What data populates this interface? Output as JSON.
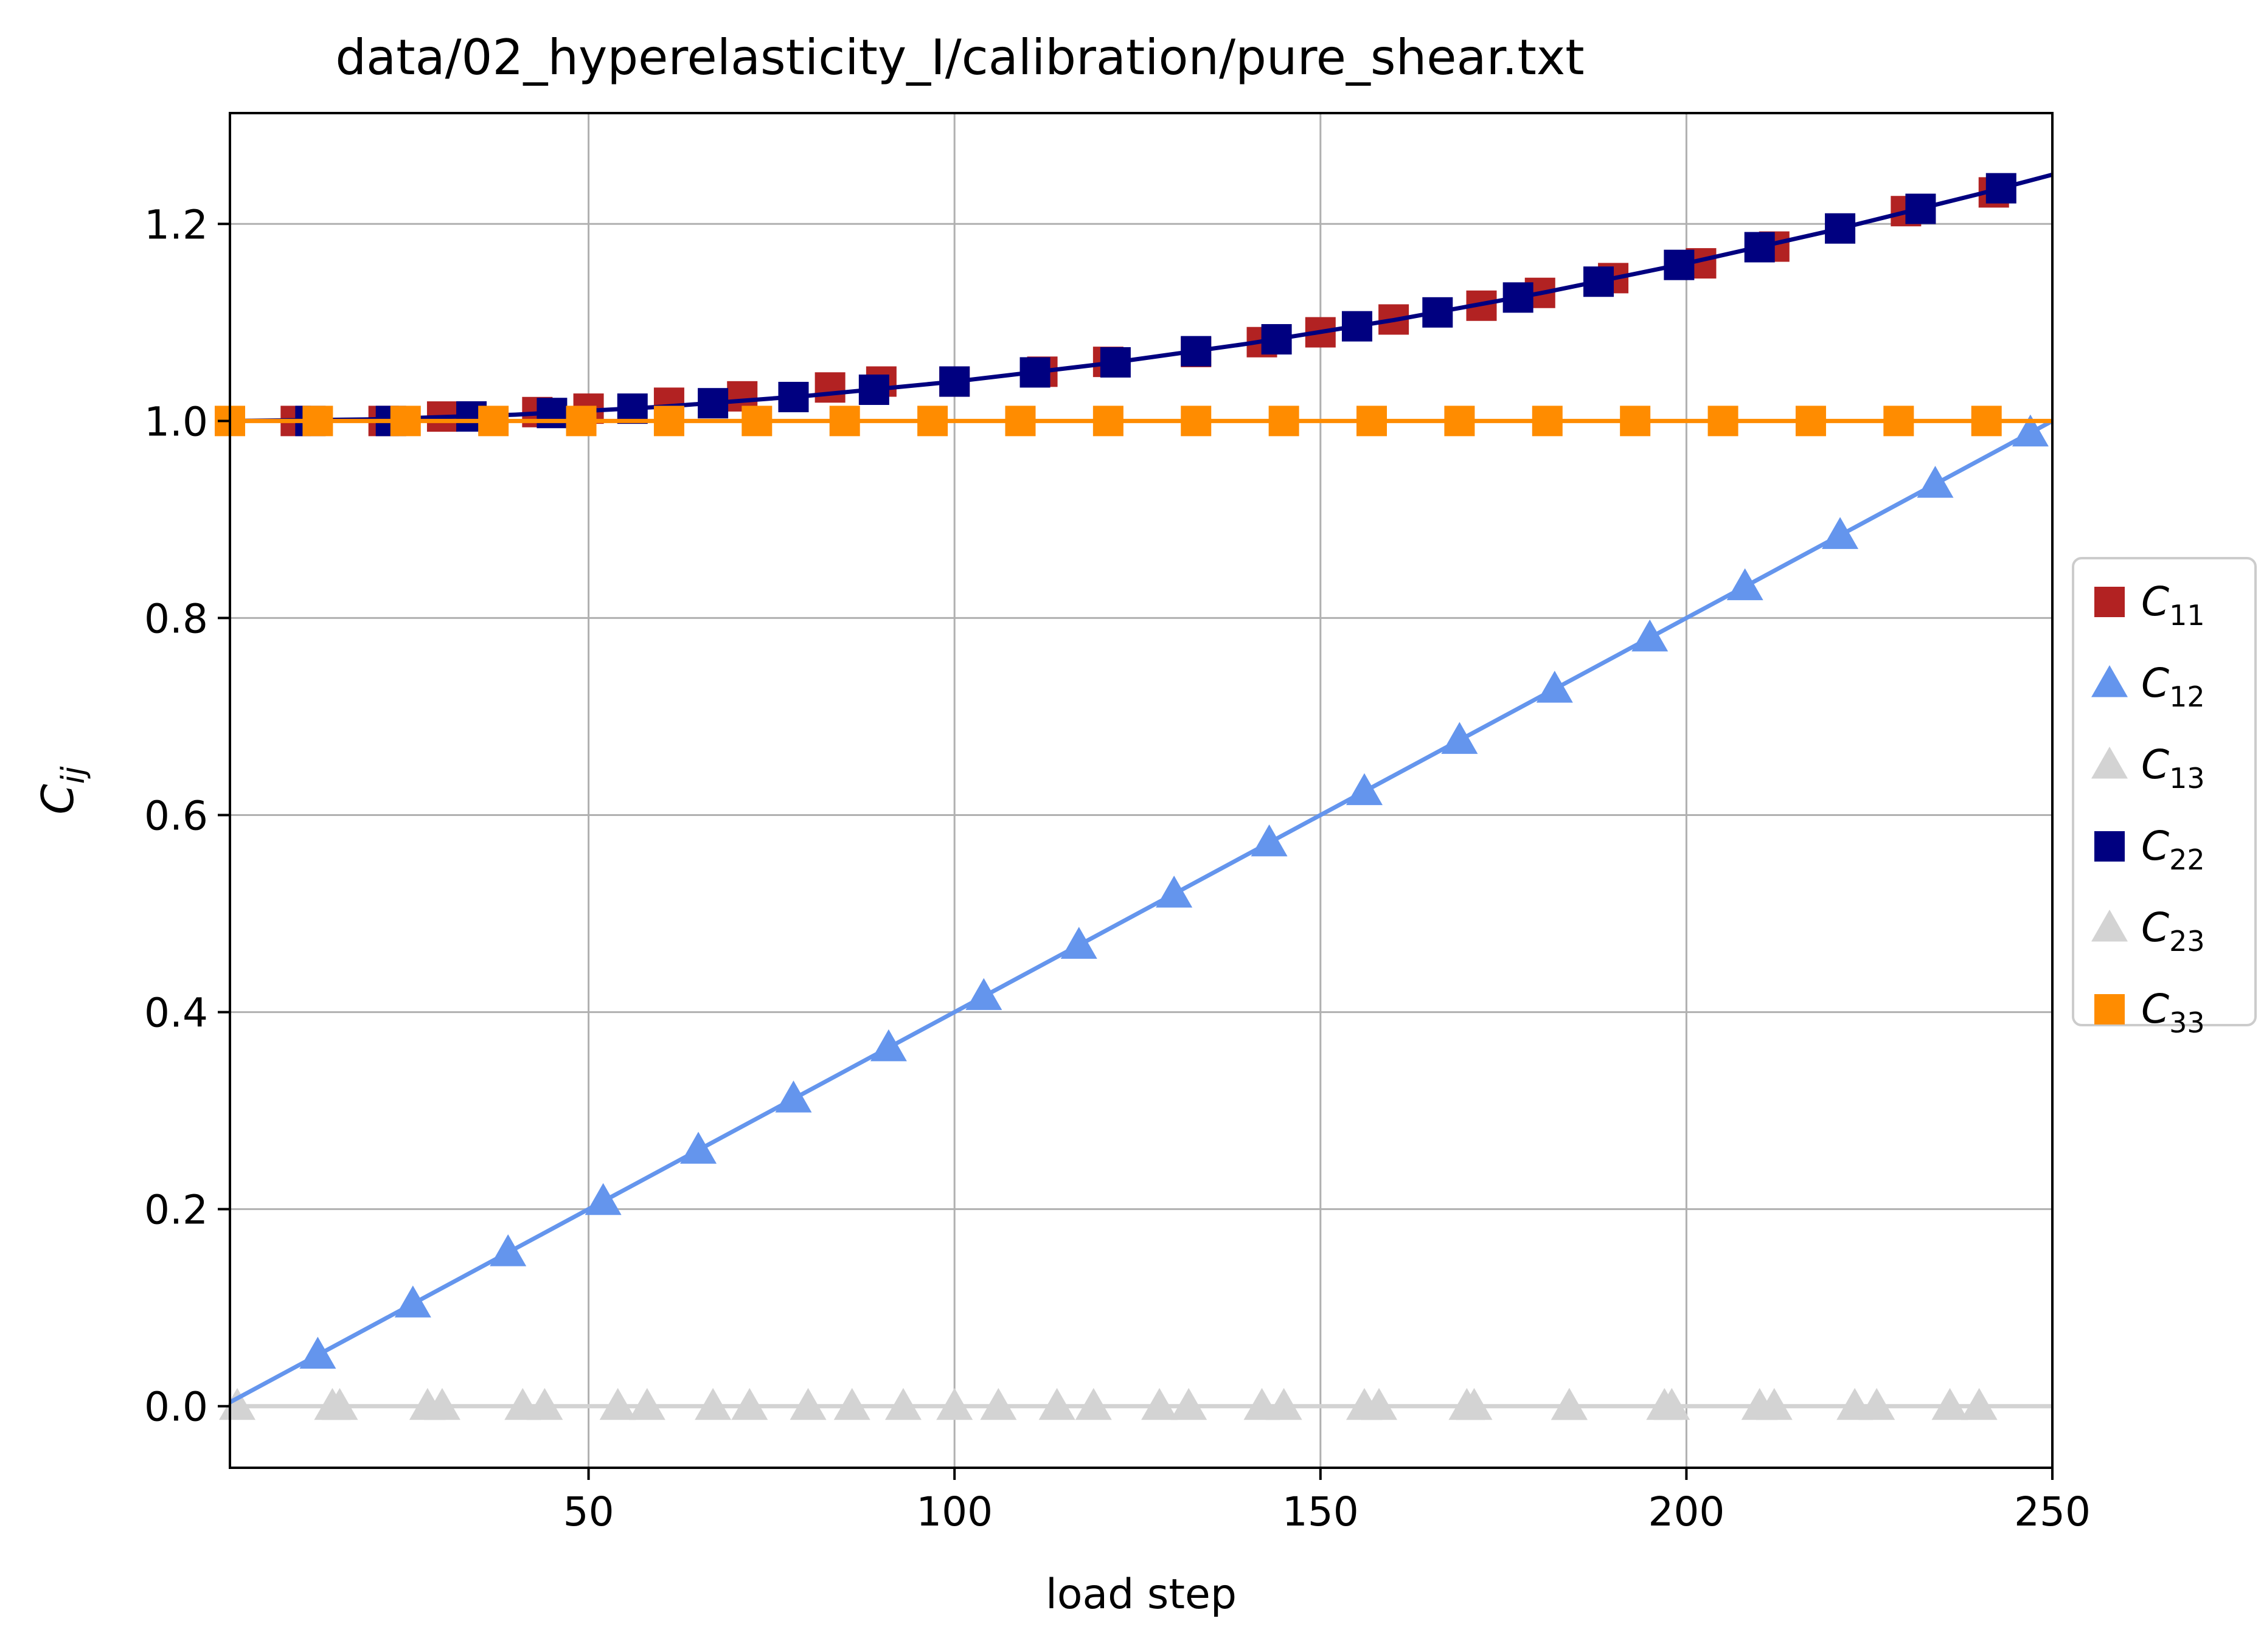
{
  "chart_data": {
    "type": "line",
    "title": "data/02_hyperelasticity_I/calibration/pure_shear.txt",
    "xlabel": "load step",
    "ylabel": {
      "base": "C",
      "sub": "ij"
    },
    "xlim": [
      1,
      250
    ],
    "ylim": [
      -0.0625,
      1.3125
    ],
    "xticks": [
      50,
      100,
      150,
      200,
      250
    ],
    "xtick_labels": [
      "50",
      "100",
      "150",
      "200",
      "250"
    ],
    "yticks": [
      0.0,
      0.2,
      0.4,
      0.6,
      0.8,
      1.0,
      1.2
    ],
    "ytick_labels": [
      "0.0",
      "0.2",
      "0.4",
      "0.6",
      "0.8",
      "1.0",
      "1.2"
    ],
    "grid": true,
    "legend_placement": "outside right, center",
    "series": [
      {
        "name": "C11",
        "label_base": "C",
        "label_sub": "11",
        "color": "#b22222",
        "marker": "square",
        "marker_only": true,
        "x": [
          10,
          22,
          30,
          43,
          50,
          61,
          71,
          83,
          90,
          100,
          112,
          121,
          133,
          142,
          150,
          160,
          172,
          180,
          190,
          202,
          212,
          230,
          242
        ],
        "y": [
          1.0,
          1.0,
          1.0045,
          1.009,
          1.0125,
          1.0185,
          1.025,
          1.034,
          1.04,
          1.04,
          1.05,
          1.06,
          1.07,
          1.08,
          1.09,
          1.103,
          1.117,
          1.13,
          1.145,
          1.16,
          1.177,
          1.213,
          1.232
        ]
      },
      {
        "name": "C12",
        "label_base": "C",
        "label_sub": "12",
        "color": "#6495ed",
        "marker": "triangle",
        "x": [
          1,
          250
        ],
        "y": [
          0.004,
          1.0
        ],
        "marker_x": [
          13,
          26,
          39,
          52,
          65,
          78,
          91,
          104,
          117,
          130,
          143,
          156,
          169,
          182,
          195,
          208,
          221,
          234,
          247
        ],
        "marker_y": [
          0.052,
          0.104,
          0.156,
          0.208,
          0.26,
          0.312,
          0.364,
          0.416,
          0.468,
          0.52,
          0.572,
          0.624,
          0.676,
          0.728,
          0.78,
          0.832,
          0.884,
          0.936,
          0.988
        ]
      },
      {
        "name": "C13",
        "label_base": "C",
        "label_sub": "13",
        "color": "#d3d3d3",
        "marker": "triangle",
        "x": [
          1,
          250
        ],
        "y": [
          0.0,
          0.0
        ],
        "marker_x": [
          2,
          15,
          28,
          41,
          54,
          67,
          80,
          93,
          106,
          119,
          132,
          145,
          158,
          171,
          184,
          197,
          210,
          223,
          236
        ],
        "marker_y": [
          0,
          0,
          0,
          0,
          0,
          0,
          0,
          0,
          0,
          0,
          0,
          0,
          0,
          0,
          0,
          0,
          0,
          0,
          0
        ]
      },
      {
        "name": "C22",
        "label_base": "C",
        "label_sub": "22",
        "color": "#000080",
        "marker": "square",
        "x": [
          1,
          20,
          40,
          60,
          80,
          100,
          120,
          140,
          160,
          180,
          200,
          220,
          240,
          250
        ],
        "y": [
          1.0,
          1.0016,
          1.0064,
          1.0144,
          1.0256,
          1.04,
          1.0576,
          1.0784,
          1.1024,
          1.1296,
          1.16,
          1.1936,
          1.2304,
          1.25
        ],
        "marker_x": [
          12,
          23,
          34,
          45,
          56,
          67,
          78,
          89,
          100,
          111,
          122,
          133,
          144,
          155,
          166,
          177,
          188,
          199,
          210,
          221,
          232,
          243
        ],
        "marker_y": [
          1.0,
          1.0,
          1.0046,
          1.0081,
          1.0125,
          1.018,
          1.0243,
          1.0317,
          1.04,
          1.0493,
          1.0595,
          1.0708,
          1.0829,
          1.0961,
          1.1102,
          1.1253,
          1.1414,
          1.1584,
          1.1764,
          1.1954,
          1.2153,
          1.2362
        ]
      },
      {
        "name": "C23",
        "label_base": "C",
        "label_sub": "23",
        "color": "#d3d3d3",
        "marker": "triangle",
        "marker_only": true,
        "x": [
          16,
          30,
          44,
          58,
          72,
          86,
          100,
          114,
          128,
          142,
          156,
          170,
          184,
          198,
          212,
          226,
          240
        ],
        "y": [
          0,
          0,
          0,
          0,
          0,
          0,
          0,
          0,
          0,
          0,
          0,
          0,
          0,
          0,
          0,
          0,
          0
        ]
      },
      {
        "name": "C33",
        "label_base": "C",
        "label_sub": "33",
        "color": "#ff8c00",
        "marker": "square",
        "x": [
          1,
          250
        ],
        "y": [
          1.0,
          1.0
        ],
        "marker_x": [
          1,
          13,
          25,
          37,
          49,
          61,
          73,
          85,
          97,
          109,
          121,
          133,
          145,
          157,
          169,
          181,
          193,
          205,
          217,
          229,
          241
        ],
        "marker_y": [
          1,
          1,
          1,
          1,
          1,
          1,
          1,
          1,
          1,
          1,
          1,
          1,
          1,
          1,
          1,
          1,
          1,
          1,
          1,
          1,
          1
        ]
      }
    ]
  }
}
